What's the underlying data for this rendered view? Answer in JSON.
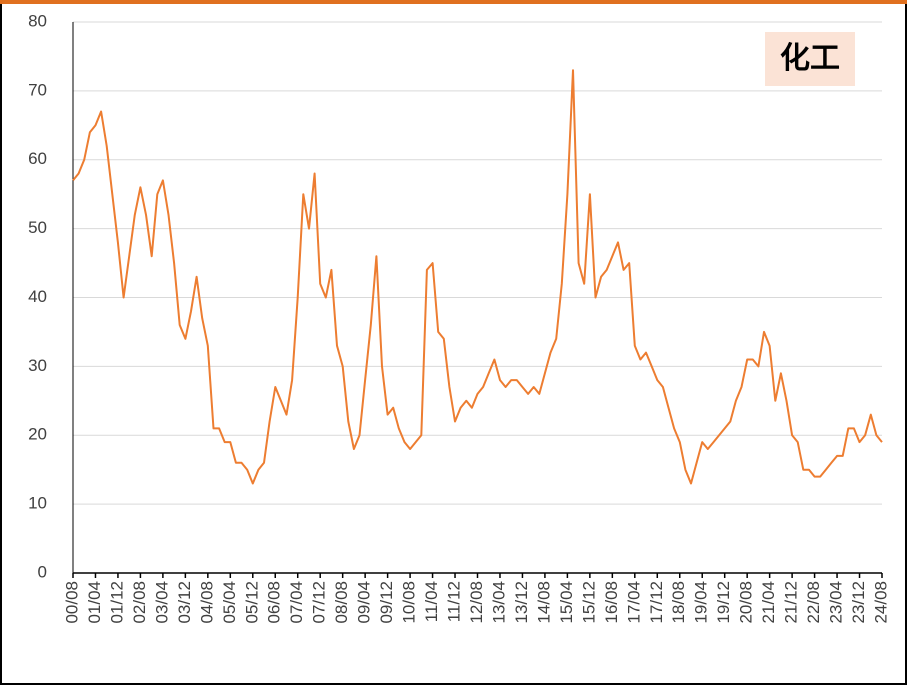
{
  "chart_data": {
    "type": "line",
    "annotation": "化工",
    "categories": [
      "00/08",
      null,
      null,
      null,
      "01/04",
      null,
      null,
      null,
      "01/12",
      null,
      null,
      null,
      "02/08",
      null,
      null,
      null,
      "03/04",
      null,
      null,
      null,
      "03/12",
      null,
      null,
      null,
      "04/08",
      null,
      null,
      null,
      "05/04",
      null,
      null,
      null,
      "05/12",
      null,
      null,
      null,
      "06/08",
      null,
      null,
      null,
      "07/04",
      null,
      null,
      null,
      "07/12",
      null,
      null,
      null,
      "08/08",
      null,
      null,
      null,
      "09/04",
      null,
      null,
      null,
      "09/12",
      null,
      null,
      null,
      "10/08",
      null,
      null,
      null,
      "11/04",
      null,
      null,
      null,
      "11/12",
      null,
      null,
      null,
      "12/08",
      null,
      null,
      null,
      "13/04",
      null,
      null,
      null,
      "13/12",
      null,
      null,
      null,
      "14/08",
      null,
      null,
      null,
      "15/04",
      null,
      null,
      null,
      "15/12",
      null,
      null,
      null,
      "16/08",
      null,
      null,
      null,
      "17/04",
      null,
      null,
      null,
      "17/12",
      null,
      null,
      null,
      "18/08",
      null,
      null,
      null,
      "19/04",
      null,
      null,
      null,
      "19/12",
      null,
      null,
      null,
      "20/08",
      null,
      null,
      null,
      "21/04",
      null,
      null,
      null,
      "21/12",
      null,
      null,
      null,
      "22/08",
      null,
      null,
      null,
      "23/04",
      null,
      null,
      null,
      "23/12",
      null,
      null,
      null,
      "24/08"
    ],
    "series": [
      {
        "color": "#ed7d31",
        "values": [
          57,
          58,
          60,
          64,
          65,
          67,
          62,
          55,
          48,
          40,
          46,
          52,
          56,
          52,
          46,
          55,
          57,
          52,
          45,
          36,
          34,
          38,
          43,
          37,
          33,
          21,
          21,
          19,
          19,
          16,
          16,
          15,
          13,
          15,
          16,
          22,
          27,
          25,
          23,
          28,
          40,
          55,
          50,
          58,
          42,
          40,
          44,
          33,
          30,
          22,
          18,
          20,
          28,
          36,
          46,
          30,
          23,
          24,
          21,
          19,
          18,
          19,
          20,
          44,
          45,
          35,
          34,
          27,
          22,
          24,
          25,
          24,
          26,
          27,
          29,
          31,
          28,
          27,
          28,
          28,
          27,
          26,
          27,
          26,
          29,
          32,
          34,
          42,
          55,
          73,
          45,
          42,
          55,
          40,
          43,
          44,
          46,
          48,
          44,
          45,
          33,
          31,
          32,
          30,
          28,
          27,
          24,
          21,
          19,
          15,
          13,
          16,
          19,
          18,
          19,
          20,
          21,
          22,
          25,
          27,
          31,
          31,
          30,
          35,
          33,
          25,
          29,
          25,
          20,
          19,
          15,
          15,
          14,
          14,
          15,
          16,
          17,
          17,
          21,
          21,
          19,
          20,
          23,
          20,
          19
        ]
      }
    ],
    "ylim": [
      0,
      80
    ],
    "yticks": [
      0,
      10,
      20,
      30,
      40,
      50,
      60,
      70,
      80
    ],
    "grid": true
  }
}
